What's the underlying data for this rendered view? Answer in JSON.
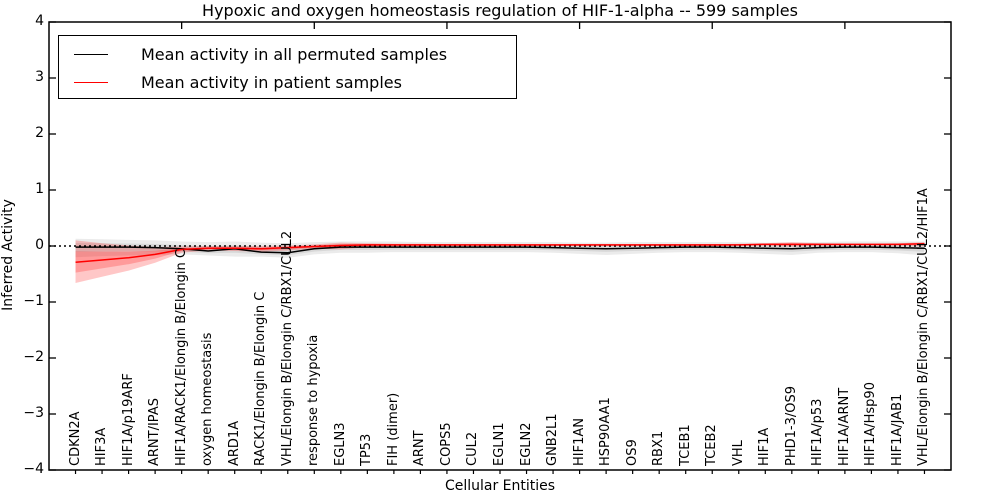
{
  "chart_data": {
    "type": "line",
    "title": "Hypoxic and oxygen homeostasis regulation of HIF-1-alpha -- 599 samples",
    "xlabel": "Cellular Entities",
    "ylabel": "Inferred Activity",
    "ylim": [
      -4,
      4
    ],
    "ytick_labels": [
      "4",
      "3",
      "2",
      "1",
      "0",
      "−1",
      "−2",
      "−3",
      "−4"
    ],
    "top_axis_ticks_at_x": [
      5,
      10,
      15,
      20,
      25,
      30
    ],
    "grid": false,
    "legend_position": "upper left",
    "zero_line": {
      "style": "dotted",
      "color": "#000000",
      "y": 0
    },
    "categories": [
      "CDKN2A",
      "HIF3A",
      "HIF1A/p19ARF",
      "ARNT/IPAS",
      "HIF1A/RACK1/Elongin B/Elongin C",
      "oxygen homeostasis",
      "ARD1A",
      "RACK1/Elongin B/Elongin C",
      "VHL/Elongin B/Elongin C/RBX1/CUL2",
      "response to hypoxia",
      "EGLN3",
      "TP53",
      "FIH (dimer)",
      "ARNT",
      "COPS5",
      "CUL2",
      "EGLN1",
      "EGLN2",
      "GNB2L1",
      "HIF1AN",
      "HSP90AA1",
      "OS9",
      "RBX1",
      "TCEB1",
      "TCEB2",
      "VHL",
      "HIF1A",
      "PHD1-3/OS9",
      "HIF1A/p53",
      "HIF1A/ARNT",
      "HIF1A/Hsp90",
      "HIF1A/JAB1",
      "VHL/Elongin B/Elongin C/RBX1/CUL2/HIF1A"
    ],
    "series": [
      {
        "name": "Mean activity in all permuted samples",
        "color": "#000000",
        "band_fill": "rgba(0,0,0,0.08)",
        "values": [
          -0.02,
          -0.02,
          -0.02,
          -0.03,
          -0.05,
          -0.09,
          -0.05,
          -0.11,
          -0.12,
          -0.05,
          -0.02,
          -0.02,
          -0.02,
          -0.02,
          -0.02,
          -0.02,
          -0.02,
          -0.02,
          -0.03,
          -0.04,
          -0.05,
          -0.04,
          -0.03,
          -0.02,
          -0.02,
          -0.03,
          -0.04,
          -0.05,
          -0.03,
          -0.02,
          -0.02,
          -0.03,
          -0.04
        ],
        "band_hi": [
          0.13,
          0.12,
          0.11,
          0.1,
          0.08,
          0.07,
          0.08,
          0.06,
          0.05,
          0.07,
          0.08,
          0.08,
          0.08,
          0.07,
          0.07,
          0.07,
          0.07,
          0.07,
          0.07,
          0.06,
          0.06,
          0.07,
          0.07,
          0.07,
          0.07,
          0.07,
          0.06,
          0.06,
          0.07,
          0.08,
          0.08,
          0.08,
          0.08
        ],
        "band_lo": [
          -0.2,
          -0.18,
          -0.17,
          -0.16,
          -0.15,
          -0.17,
          -0.19,
          -0.19,
          -0.21,
          -0.15,
          -0.12,
          -0.12,
          -0.11,
          -0.11,
          -0.11,
          -0.11,
          -0.11,
          -0.11,
          -0.12,
          -0.14,
          -0.16,
          -0.14,
          -0.12,
          -0.11,
          -0.11,
          -0.12,
          -0.14,
          -0.16,
          -0.12,
          -0.11,
          -0.11,
          -0.13,
          -0.17
        ]
      },
      {
        "name": "Mean activity in patient samples",
        "color": "#ff0000",
        "band_fill": "rgba(255,0,0,0.22)",
        "values": [
          -0.29,
          -0.25,
          -0.21,
          -0.15,
          -0.06,
          -0.04,
          -0.04,
          -0.05,
          -0.03,
          -0.01,
          0.01,
          0.02,
          0.02,
          0.02,
          0.02,
          0.02,
          0.02,
          0.02,
          0.02,
          0.02,
          0.02,
          0.02,
          0.02,
          0.02,
          0.02,
          0.02,
          0.03,
          0.03,
          0.03,
          0.03,
          0.03,
          0.03,
          0.04
        ],
        "band_hi": [
          0.1,
          0.05,
          0.01,
          -0.02,
          -0.01,
          0.0,
          0.0,
          0.0,
          0.01,
          0.03,
          0.06,
          0.05,
          0.04,
          0.04,
          0.03,
          0.03,
          0.03,
          0.03,
          0.03,
          0.03,
          0.03,
          0.03,
          0.03,
          0.03,
          0.03,
          0.04,
          0.05,
          0.07,
          0.05,
          0.04,
          0.04,
          0.05,
          0.07
        ],
        "band_lo": [
          -0.66,
          -0.55,
          -0.44,
          -0.3,
          -0.12,
          -0.08,
          -0.09,
          -0.1,
          -0.08,
          -0.05,
          -0.06,
          -0.02,
          -0.01,
          0.0,
          0.0,
          0.0,
          0.0,
          0.0,
          0.0,
          0.0,
          0.0,
          0.0,
          0.0,
          0.0,
          0.0,
          0.01,
          0.01,
          -0.01,
          0.01,
          0.01,
          0.01,
          0.01,
          0.0
        ]
      }
    ]
  }
}
